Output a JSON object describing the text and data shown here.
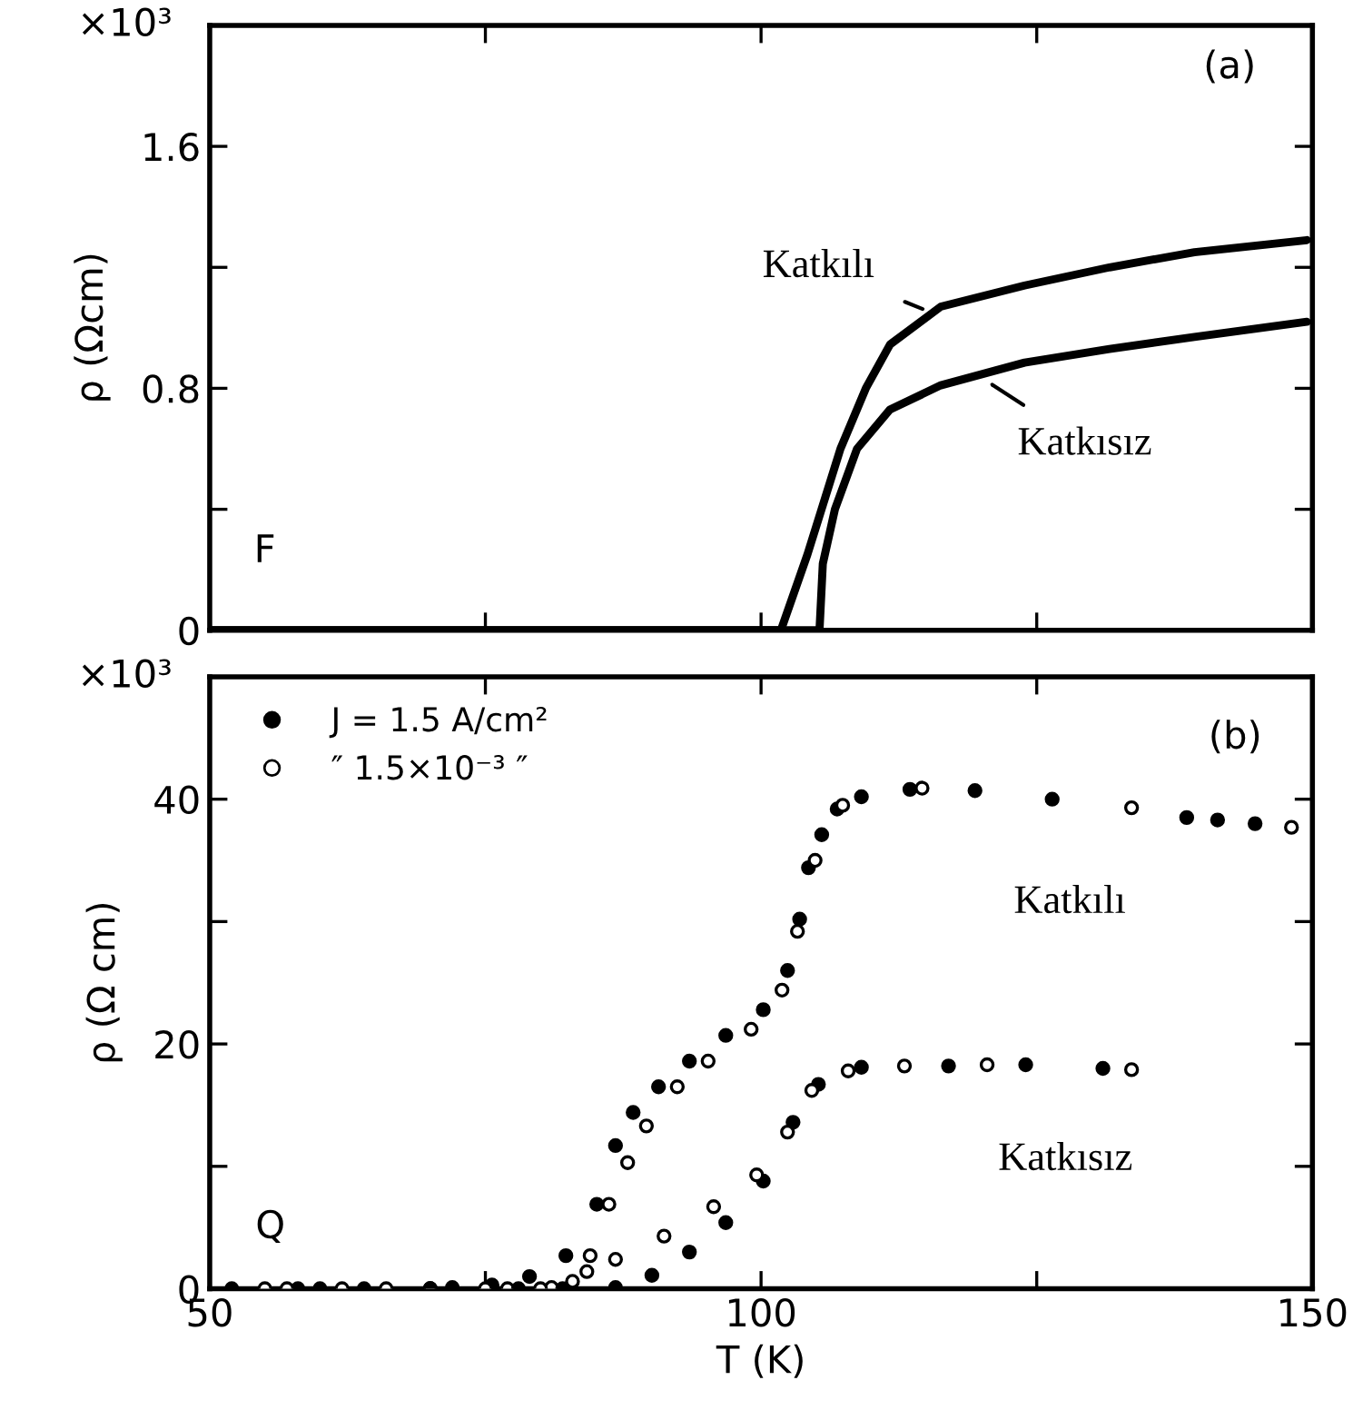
{
  "chart_data": [
    {
      "type": "line",
      "xlim": [
        50,
        150
      ],
      "ylim": [
        0,
        2.0
      ],
      "xticks": [
        50,
        75,
        100,
        125,
        150
      ],
      "yticks": [
        0,
        {
          "value": 0.4,
          "label": null
        },
        0.8,
        {
          "value": 1.2,
          "label": null
        },
        1.6
      ],
      "tick_labels": "y",
      "ylabel": "ρ (Ωcm)",
      "series": [
        {
          "color": "#000000",
          "x": [
            50,
            80,
            101.8,
            104.2,
            107.2,
            109.5,
            111.7,
            116.3,
            123.9,
            131.6,
            139.3,
            149.5
          ],
          "values": [
            0,
            0,
            0,
            0.25,
            0.6,
            0.8,
            0.945,
            1.07,
            1.14,
            1.2,
            1.25,
            1.29
          ]
        },
        {
          "color": "#000000",
          "x": [
            50,
            80,
            105.3,
            105.6,
            106.7,
            108.7,
            111.7,
            116.3,
            123.9,
            131.6,
            139.3,
            149.5
          ],
          "values": [
            0,
            0,
            0,
            0.22,
            0.4,
            0.6,
            0.73,
            0.81,
            0.885,
            0.93,
            0.97,
            1.02
          ]
        }
      ],
      "annotations": [
        "×10³",
        "(a)",
        "F",
        {
          "text": "Katkılı",
          "x": 115.5,
          "y": 1.05
        },
        {
          "text": "Katkısız",
          "x": 120.2,
          "y": 0.83
        }
      ]
    },
    {
      "type": "scatter",
      "xlim": [
        50,
        150
      ],
      "ylim": [
        0,
        50
      ],
      "xticks": [
        50,
        {
          "value": 75,
          "label": null
        },
        100,
        {
          "value": 125,
          "label": null
        },
        150
      ],
      "yticks": [
        0,
        {
          "value": 10,
          "label": null
        },
        20,
        {
          "value": 30,
          "label": null
        },
        40
      ],
      "xlabel": "T (K)",
      "ylabel": "ρ (Ω cm)",
      "legend": "top left",
      "marker": "circle",
      "series": [
        {
          "name": "J = 1.5 A/cm²",
          "color": "#000000",
          "x": [
            52,
            58,
            64,
            70,
            72,
            75.6,
            79.0,
            82.3,
            85.1,
            86.8,
            88.4,
            90.7,
            93.5,
            96.8,
            100.2,
            102.4,
            103.5,
            104.3,
            105.5,
            106.9,
            109.1,
            113.5,
            119.4,
            126.4,
            138.6,
            141.4,
            144.8
          ],
          "values": [
            0,
            0,
            0,
            0,
            0.1,
            0.3,
            1.0,
            2.7,
            6.9,
            11.7,
            14.4,
            16.5,
            18.6,
            20.7,
            22.8,
            26.0,
            30.2,
            34.4,
            37.1,
            39.2,
            40.2,
            40.8,
            40.7,
            40.0,
            38.5,
            38.3,
            38.0
          ]
        },
        {
          "name": "″ 1.5×10⁻³ ″",
          "marker": "open_circle",
          "color": "#000000",
          "x": [
            55,
            62,
            70,
            77,
            81,
            82.9,
            84.5,
            86.2,
            87.9,
            89.6,
            92.4,
            95.2,
            99.1,
            101.9,
            103.3,
            104.9,
            107.4,
            114.6,
            133.6,
            148.1
          ],
          "values": [
            0,
            0,
            0,
            0,
            0.1,
            0.6,
            2.7,
            6.9,
            10.3,
            13.3,
            16.5,
            18.6,
            21.2,
            24.4,
            29.2,
            35.0,
            39.5,
            40.9,
            39.3,
            37.7
          ]
        },
        {
          "color": "#000000",
          "x": [
            60,
            70,
            78,
            82,
            86.8,
            90.1,
            93.5,
            96.8,
            100.2,
            102.9,
            105.2,
            109.1,
            117.0,
            124.0,
            131.0
          ],
          "values": [
            0,
            0,
            0,
            0,
            0.1,
            1.1,
            3.0,
            5.4,
            8.8,
            13.6,
            16.7,
            18.1,
            18.2,
            18.3,
            18.0
          ]
        },
        {
          "marker": "open_circle",
          "color": "#000000",
          "x": [
            57,
            66,
            75,
            80,
            84.2,
            86.8,
            91.2,
            95.7,
            99.6,
            102.4,
            104.6,
            107.9,
            113.0,
            120.5,
            133.6
          ],
          "values": [
            0,
            0,
            0,
            0,
            1.4,
            2.4,
            4.3,
            6.7,
            9.3,
            12.8,
            16.2,
            17.8,
            18.2,
            18.3,
            17.9
          ]
        }
      ],
      "annotations": [
        "×10³",
        "(b)",
        "Q",
        "Katkılı",
        "Katkısız"
      ]
    }
  ]
}
